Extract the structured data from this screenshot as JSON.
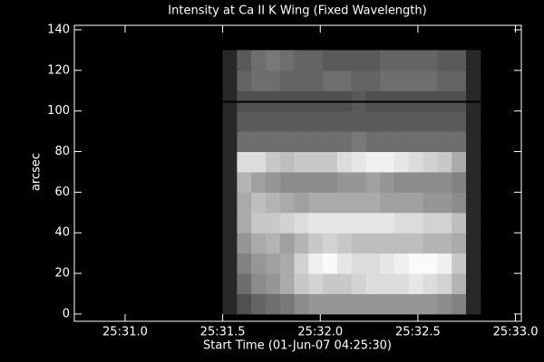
{
  "chart_data": {
    "type": "image",
    "title": "Intensity at Ca II K Wing (Fixed Wavelength)",
    "xlabel": "Start Time (01-Jun-07 04:25:30)",
    "ylabel": "arcsec",
    "xlim": [
      0.74,
      3.03
    ],
    "ylim": [
      -3.6,
      142.2
    ],
    "xticks": [
      {
        "value": 1.0,
        "label": "25:31.0"
      },
      {
        "value": 1.5,
        "label": "25:31.5"
      },
      {
        "value": 2.0,
        "label": "25:32.0"
      },
      {
        "value": 2.5,
        "label": "25:32.5"
      },
      {
        "value": 3.0,
        "label": "25:33.0"
      }
    ],
    "yticks": [
      0,
      20,
      40,
      60,
      80,
      100,
      120,
      140
    ],
    "extent": [
      1.5,
      2.82,
      0,
      130
    ],
    "hline": 104.5,
    "values": [
      [
        40,
        80,
        100,
        110,
        120,
        140,
        150,
        150,
        150,
        150,
        150,
        150,
        150,
        150,
        150,
        140,
        130,
        40
      ],
      [
        40,
        110,
        140,
        150,
        170,
        200,
        210,
        200,
        200,
        210,
        220,
        220,
        220,
        230,
        220,
        210,
        180,
        40
      ],
      [
        40,
        130,
        150,
        160,
        170,
        210,
        240,
        250,
        230,
        220,
        220,
        230,
        240,
        250,
        250,
        240,
        200,
        40
      ],
      [
        40,
        150,
        170,
        180,
        160,
        180,
        200,
        210,
        200,
        190,
        190,
        190,
        190,
        190,
        180,
        180,
        170,
        40
      ],
      [
        40,
        170,
        200,
        200,
        210,
        220,
        230,
        230,
        230,
        230,
        230,
        230,
        220,
        220,
        210,
        210,
        190,
        40
      ],
      [
        40,
        170,
        190,
        180,
        170,
        160,
        170,
        170,
        170,
        170,
        170,
        160,
        160,
        160,
        150,
        150,
        140,
        40
      ],
      [
        40,
        180,
        160,
        150,
        140,
        140,
        140,
        140,
        150,
        150,
        160,
        150,
        140,
        140,
        140,
        140,
        130,
        40
      ],
      [
        40,
        220,
        220,
        200,
        190,
        200,
        200,
        200,
        220,
        230,
        240,
        240,
        230,
        220,
        210,
        200,
        170,
        40
      ],
      [
        40,
        110,
        110,
        110,
        110,
        110,
        110,
        110,
        110,
        120,
        110,
        110,
        110,
        110,
        110,
        110,
        110,
        40
      ],
      [
        40,
        90,
        90,
        90,
        90,
        90,
        90,
        90,
        90,
        90,
        90,
        90,
        90,
        90,
        90,
        90,
        90,
        40
      ],
      [
        40,
        80,
        80,
        80,
        80,
        80,
        80,
        80,
        80,
        90,
        80,
        80,
        80,
        80,
        80,
        80,
        80,
        40
      ],
      [
        40,
        100,
        110,
        110,
        100,
        100,
        100,
        110,
        110,
        100,
        100,
        110,
        110,
        110,
        110,
        100,
        100,
        40
      ],
      [
        40,
        90,
        110,
        120,
        110,
        100,
        100,
        90,
        90,
        90,
        90,
        100,
        100,
        100,
        100,
        90,
        90,
        40
      ]
    ]
  }
}
